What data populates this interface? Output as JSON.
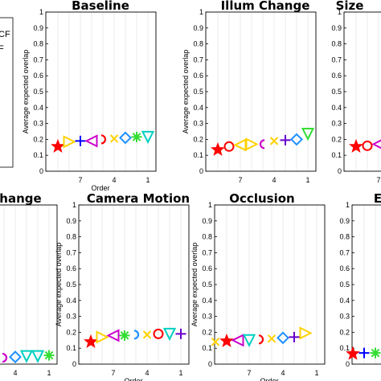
{
  "legend_entries": [
    "CF",
    "F"
  ],
  "chart_data": [
    {
      "type": "scatter",
      "title": "Baseline",
      "xlabel": "Order",
      "ylabel": "Average expected overlap",
      "ylim": [
        0,
        1
      ],
      "yticks": [
        "0",
        "0.1",
        "0.2",
        "0.3",
        "0.4",
        "0.5",
        "0.6",
        "0.7",
        "0.8",
        "0.9",
        "1"
      ],
      "xticks": [
        "7",
        "4",
        "1"
      ],
      "grid": "vertical",
      "points": [
        {
          "x": 9,
          "y": 0.155,
          "marker": "star",
          "color": "#ff0000"
        },
        {
          "x": 8,
          "y": 0.185,
          "marker": "tri-right",
          "color": "#ffd200"
        },
        {
          "x": 7,
          "y": 0.19,
          "marker": "plus",
          "color": "#0000ff"
        },
        {
          "x": 6,
          "y": 0.19,
          "marker": "tri-left",
          "color": "#cc00cc"
        },
        {
          "x": 5,
          "y": 0.2,
          "marker": "arc-right",
          "color": "#ff0000"
        },
        {
          "x": 4,
          "y": 0.205,
          "marker": "x",
          "color": "#ffd200"
        },
        {
          "x": 3,
          "y": 0.21,
          "marker": "diamond",
          "color": "#1e90ff"
        },
        {
          "x": 2,
          "y": 0.215,
          "marker": "asterisk",
          "color": "#33dd33"
        },
        {
          "x": 1,
          "y": 0.215,
          "marker": "tri-down",
          "color": "#00d0c0"
        }
      ]
    },
    {
      "type": "scatter",
      "title": "Illum Change",
      "xlabel": "",
      "ylabel": "Average expected overlap",
      "ylim": [
        0,
        1
      ],
      "yticks": [
        "0",
        "0.1",
        "0.2",
        "0.3",
        "0.4",
        "0.5",
        "0.6",
        "0.7",
        "0.8",
        "0.9",
        "1"
      ],
      "xticks": [
        "7",
        "4",
        "1"
      ],
      "grid": "vertical",
      "points": [
        {
          "x": 9,
          "y": 0.135,
          "marker": "star",
          "color": "#ff0000"
        },
        {
          "x": 8,
          "y": 0.155,
          "marker": "circle",
          "color": "#ff0000"
        },
        {
          "x": 7,
          "y": 0.165,
          "marker": "tri-left",
          "color": "#ffd200"
        },
        {
          "x": 6,
          "y": 0.17,
          "marker": "tri-right",
          "color": "#ffd200"
        },
        {
          "x": 5,
          "y": 0.17,
          "marker": "arc-left",
          "color": "#cc00cc"
        },
        {
          "x": 4,
          "y": 0.19,
          "marker": "x",
          "color": "#ffd200"
        },
        {
          "x": 3,
          "y": 0.195,
          "marker": "plus",
          "color": "#6600cc"
        },
        {
          "x": 2,
          "y": 0.2,
          "marker": "diamond",
          "color": "#1e90ff"
        },
        {
          "x": 1,
          "y": 0.235,
          "marker": "tri-down",
          "color": "#33dd33"
        }
      ]
    },
    {
      "type": "scatter",
      "title": "Size",
      "xlabel": "",
      "ylabel": "",
      "ylim": [
        0,
        1
      ],
      "yticks": [
        "0",
        "0.1",
        "0.2",
        "0.3",
        "0.4",
        "0.5",
        "0.6",
        "0.7",
        "0.8",
        "0.9",
        "1"
      ],
      "xticks": [
        "7"
      ],
      "grid": "vertical",
      "points": [
        {
          "x": 9,
          "y": 0.155,
          "marker": "star",
          "color": "#ff0000"
        },
        {
          "x": 8,
          "y": 0.16,
          "marker": "circle",
          "color": "#ff0000"
        },
        {
          "x": 7,
          "y": 0.17,
          "marker": "tri-left",
          "color": "#cc00cc"
        }
      ]
    },
    {
      "type": "scatter",
      "title": "Change",
      "xlabel": "",
      "ylabel": "",
      "ylim": [
        0,
        1
      ],
      "yticks": [],
      "xticks": [
        "4",
        "1"
      ],
      "grid": "vertical",
      "points": [
        {
          "x": 6,
          "y": 0.03,
          "marker": "plus",
          "color": "#0000ff"
        },
        {
          "x": 5,
          "y": 0.04,
          "marker": "arc-right",
          "color": "#cc00cc"
        },
        {
          "x": 4,
          "y": 0.045,
          "marker": "diamond",
          "color": "#1e90ff"
        },
        {
          "x": 3,
          "y": 0.05,
          "marker": "tri-down",
          "color": "#00d0c0"
        },
        {
          "x": 2,
          "y": 0.05,
          "marker": "tri-down",
          "color": "#00d0c0"
        },
        {
          "x": 1,
          "y": 0.055,
          "marker": "asterisk",
          "color": "#33dd33"
        }
      ]
    },
    {
      "type": "scatter",
      "title": "Camera Motion",
      "xlabel": "Order",
      "ylabel": "Average expected overlap",
      "ylim": [
        0,
        1
      ],
      "yticks": [
        "0",
        "0.1",
        "0.2",
        "0.3",
        "0.4",
        "0.5",
        "0.6",
        "0.7",
        "0.8",
        "0.9",
        "1"
      ],
      "xticks": [
        "7",
        "4",
        "1"
      ],
      "grid": "vertical",
      "points": [
        {
          "x": 9,
          "y": 0.14,
          "marker": "star",
          "color": "#ff0000"
        },
        {
          "x": 8,
          "y": 0.17,
          "marker": "tri-right",
          "color": "#ffd200"
        },
        {
          "x": 7,
          "y": 0.18,
          "marker": "tri-left",
          "color": "#cc00cc"
        },
        {
          "x": 6,
          "y": 0.18,
          "marker": "asterisk",
          "color": "#33dd33"
        },
        {
          "x": 5,
          "y": 0.185,
          "marker": "arc-right",
          "color": "#1e90ff"
        },
        {
          "x": 4,
          "y": 0.185,
          "marker": "x",
          "color": "#ffd200"
        },
        {
          "x": 3,
          "y": 0.19,
          "marker": "circle",
          "color": "#ff0000"
        },
        {
          "x": 2,
          "y": 0.19,
          "marker": "tri-down",
          "color": "#00d0c0"
        },
        {
          "x": 1,
          "y": 0.19,
          "marker": "plus",
          "color": "#6600cc"
        }
      ]
    },
    {
      "type": "scatter",
      "title": "Occlusion",
      "xlabel": "Order",
      "ylabel": "Average expected overlap",
      "ylim": [
        0,
        1
      ],
      "yticks": [
        "0",
        "0.1",
        "0.2",
        "0.3",
        "0.4",
        "0.5",
        "0.6",
        "0.7",
        "0.8",
        "0.9",
        "1"
      ],
      "xticks": [
        "7",
        "4",
        "1"
      ],
      "grid": "vertical",
      "points": [
        {
          "x": 10,
          "y": 0.14,
          "marker": "x",
          "color": "#ffd200"
        },
        {
          "x": 9,
          "y": 0.145,
          "marker": "star",
          "color": "#ff0000"
        },
        {
          "x": 8,
          "y": 0.15,
          "marker": "tri-left",
          "color": "#cc00cc"
        },
        {
          "x": 7,
          "y": 0.15,
          "marker": "tri-down",
          "color": "#00d0c0"
        },
        {
          "x": 6,
          "y": 0.155,
          "marker": "arc-right",
          "color": "#ff0000"
        },
        {
          "x": 5,
          "y": 0.16,
          "marker": "x",
          "color": "#ffd200"
        },
        {
          "x": 4,
          "y": 0.165,
          "marker": "diamond",
          "color": "#1e90ff"
        },
        {
          "x": 3,
          "y": 0.17,
          "marker": "plus",
          "color": "#6600cc"
        },
        {
          "x": 2,
          "y": 0.195,
          "marker": "tri-right",
          "color": "#ffd200"
        }
      ]
    },
    {
      "type": "scatter",
      "title": "E",
      "xlabel": "",
      "ylabel": "",
      "ylim": [
        0,
        1
      ],
      "yticks": [
        "0",
        "0.1",
        "0.2",
        "0.3",
        "0.4",
        "0.5",
        "0.6",
        "0.7",
        "0.8",
        "0.9",
        "1"
      ],
      "xticks": [],
      "grid": "vertical",
      "points": [
        {
          "x": 10,
          "y": 0.065,
          "marker": "star",
          "color": "#ff0000"
        },
        {
          "x": 9,
          "y": 0.07,
          "marker": "plus",
          "color": "#0000ff"
        },
        {
          "x": 8,
          "y": 0.07,
          "marker": "asterisk",
          "color": "#33dd33"
        }
      ]
    }
  ]
}
